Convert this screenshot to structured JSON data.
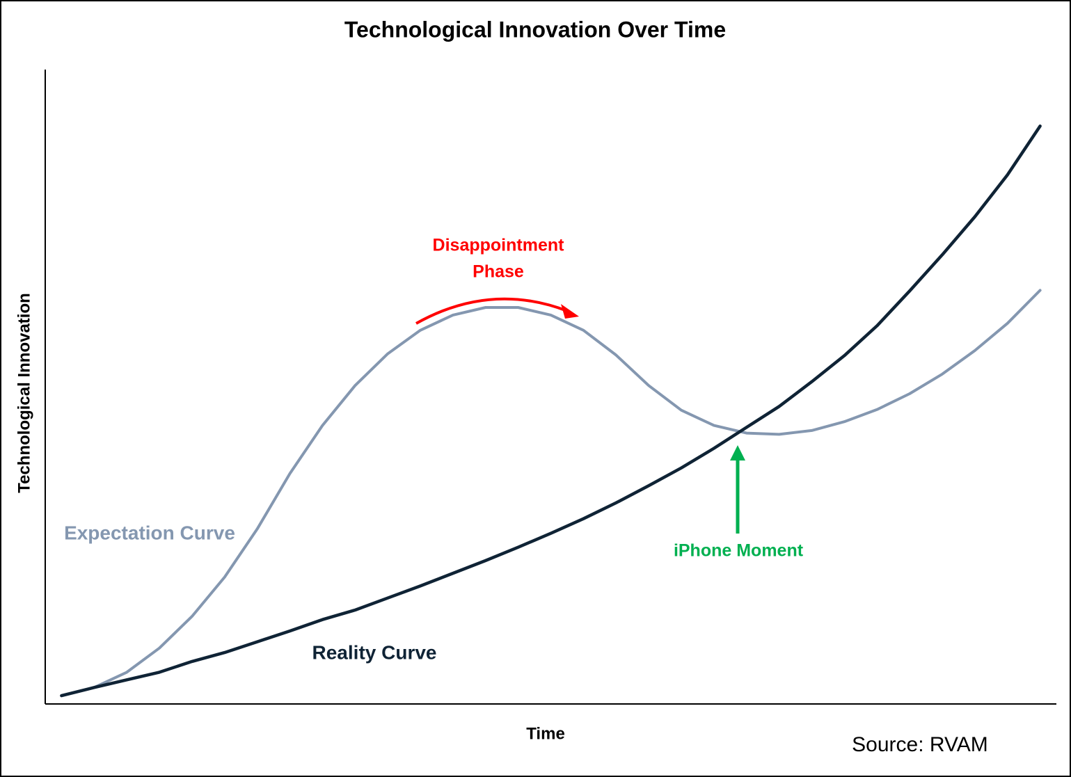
{
  "chart_data": {
    "type": "line",
    "title": "Technological Innovation Over Time",
    "x_label": "Time",
    "y_label": "Technological Innovation",
    "x": [
      0,
      1,
      2,
      3,
      4,
      5,
      6,
      7,
      8,
      9,
      10,
      11,
      12,
      13,
      14,
      15,
      16,
      17,
      18,
      19,
      20,
      21,
      22,
      23,
      24,
      25,
      26,
      27,
      28,
      29,
      30
    ],
    "xlim": [
      -0.5,
      30.5
    ],
    "ylim": [
      0,
      100
    ],
    "series": [
      {
        "name": "Expectation Curve",
        "color": "#8497b0",
        "values": [
          1.3,
          2.6,
          5.0,
          8.8,
          13.8,
          20.0,
          27.6,
          36.3,
          43.9,
          50.2,
          55.2,
          58.9,
          61.3,
          62.5,
          62.5,
          61.3,
          58.9,
          55.0,
          50.2,
          46.3,
          43.9,
          42.7,
          42.5,
          43.1,
          44.5,
          46.4,
          48.9,
          52.0,
          55.7,
          60.0,
          65.2
        ]
      },
      {
        "name": "Reality Curve",
        "color": "#0f2335",
        "values": [
          1.3,
          2.6,
          3.8,
          5.0,
          6.7,
          8.1,
          9.8,
          11.5,
          13.3,
          14.8,
          16.7,
          18.6,
          20.6,
          22.6,
          24.7,
          26.9,
          29.2,
          31.7,
          34.4,
          37.2,
          40.3,
          43.6,
          46.9,
          50.8,
          54.9,
          59.6,
          65.1,
          70.8,
          76.8,
          83.4,
          91.1
        ]
      }
    ],
    "annotations": [
      {
        "text": [
          "Disappointment",
          "Phase"
        ],
        "color": "#ff0000"
      },
      {
        "text": [
          "iPhone Moment"
        ],
        "color": "#00b050"
      }
    ],
    "source": "Source: RVAM"
  }
}
